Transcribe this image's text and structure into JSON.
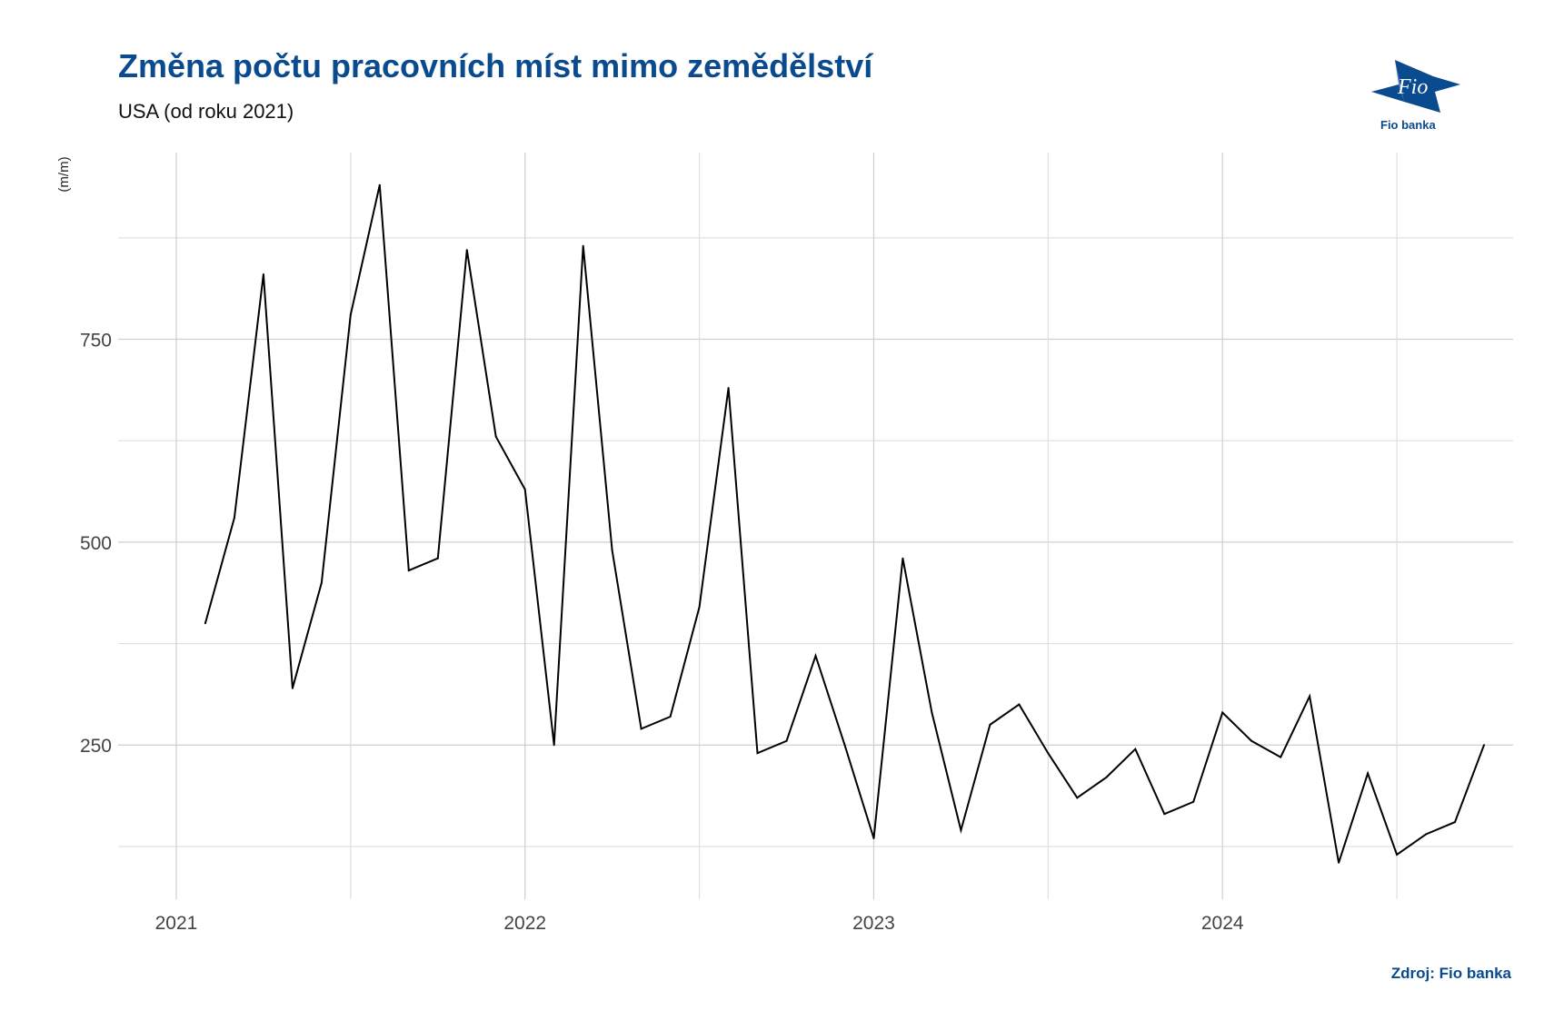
{
  "header": {
    "title": "Změna počtu pracovních míst mimo zemědělství",
    "subtitle": "USA (od roku 2021)"
  },
  "logo": {
    "brand_text": "Fio",
    "caption": "Fio banka",
    "color": "#0a4a8f"
  },
  "footer": {
    "source": "Zdroj: Fio banka"
  },
  "chart_data": {
    "type": "line",
    "title": "Změna počtu pracovních míst mimo zemědělství",
    "subtitle": "USA (od roku 2021)",
    "ylabel": "(m/m)",
    "xlabel": "",
    "x_ticks": [
      "2021",
      "2022",
      "2023",
      "2024"
    ],
    "x_tick_dates": [
      "2021-01",
      "2022-01",
      "2023-01",
      "2024-01"
    ],
    "xlim": [
      "2020-11",
      "2024-11"
    ],
    "y_ticks": [
      250,
      500,
      750
    ],
    "ylim": [
      60,
      980
    ],
    "grid": true,
    "line_color": "#000000",
    "series": [
      {
        "x": [
          "2021-02",
          "2021-03",
          "2021-04",
          "2021-05",
          "2021-06",
          "2021-07",
          "2021-08",
          "2021-09",
          "2021-10",
          "2021-11",
          "2021-12",
          "2022-01",
          "2022-02",
          "2022-03",
          "2022-04",
          "2022-05",
          "2022-06",
          "2022-07",
          "2022-08",
          "2022-09",
          "2022-10",
          "2022-11",
          "2022-12",
          "2023-01",
          "2023-02",
          "2023-03",
          "2023-04",
          "2023-05",
          "2023-06",
          "2023-07",
          "2023-08",
          "2023-09",
          "2023-10",
          "2023-11",
          "2023-12",
          "2024-01",
          "2024-02",
          "2024-03",
          "2024-04",
          "2024-05",
          "2024-06",
          "2024-07",
          "2024-08",
          "2024-09",
          "2024-10"
        ],
        "values": [
          400,
          530,
          830,
          320,
          450,
          780,
          940,
          465,
          480,
          860,
          630,
          565,
          250,
          865,
          490,
          270,
          285,
          420,
          690,
          240,
          255,
          360,
          250,
          135,
          480,
          290,
          145,
          275,
          300,
          240,
          185,
          210,
          245,
          165,
          180,
          290,
          255,
          235,
          310,
          105,
          215,
          115,
          140,
          155,
          250
        ]
      }
    ]
  }
}
